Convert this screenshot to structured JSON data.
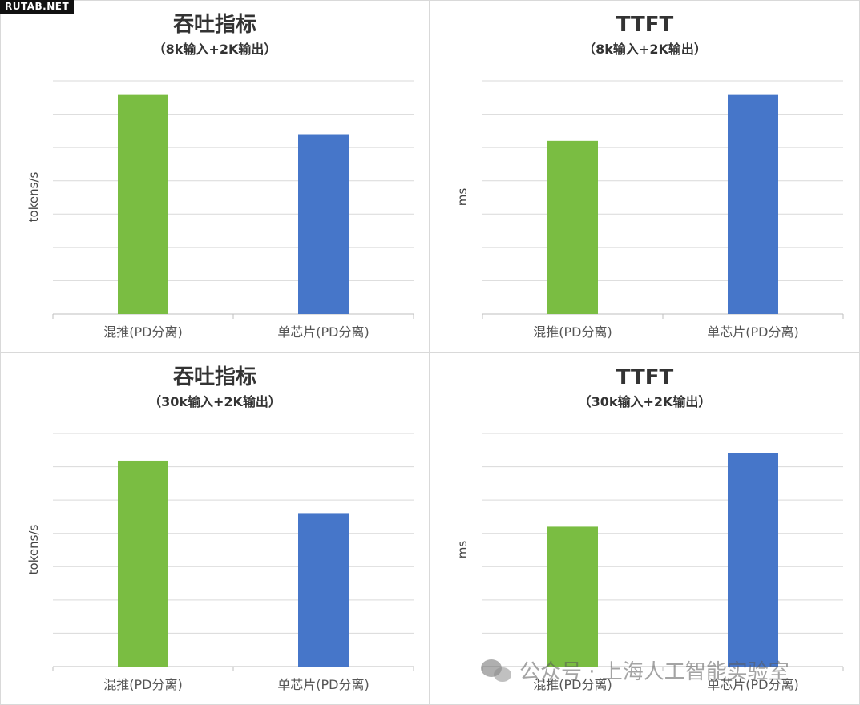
{
  "badge": "RUTAB.NET",
  "watermark": "公众号 · 上海人工智能实验室",
  "colors": {
    "green": "#7abd42",
    "blue": "#4676c9",
    "grid": "#d9d9d9"
  },
  "chart_data": [
    {
      "type": "bar",
      "title": "吞吐指标",
      "subtitle": "（8k输入+2K输出）",
      "ylabel": "tokens/s",
      "categories": [
        "混推(PD分离)",
        "单芯片(PD分离)"
      ],
      "values": [
        6.6,
        5.4
      ],
      "ylim": [
        0,
        7
      ],
      "grid": true
    },
    {
      "type": "bar",
      "title": "TTFT",
      "subtitle": "（8k输入+2K输出）",
      "ylabel": "ms",
      "categories": [
        "混推(PD分离)",
        "单芯片(PD分离)"
      ],
      "values": [
        5.2,
        6.6
      ],
      "ylim": [
        0,
        7
      ],
      "grid": true
    },
    {
      "type": "bar",
      "title": "吞吐指标",
      "subtitle": "（30k输入+2K输出）",
      "ylabel": "tokens/s",
      "categories": [
        "混推(PD分离)",
        "单芯片(PD分离)"
      ],
      "values": [
        5.3,
        3.95
      ],
      "ylim": [
        0,
        6
      ],
      "grid": true
    },
    {
      "type": "bar",
      "title": "TTFT",
      "subtitle": "（30k输入+2K输出）",
      "ylabel": "ms",
      "categories": [
        "混推(PD分离)",
        "单芯片(PD分离)"
      ],
      "values": [
        4.2,
        6.4
      ],
      "ylim": [
        0,
        7
      ],
      "grid": true
    }
  ]
}
